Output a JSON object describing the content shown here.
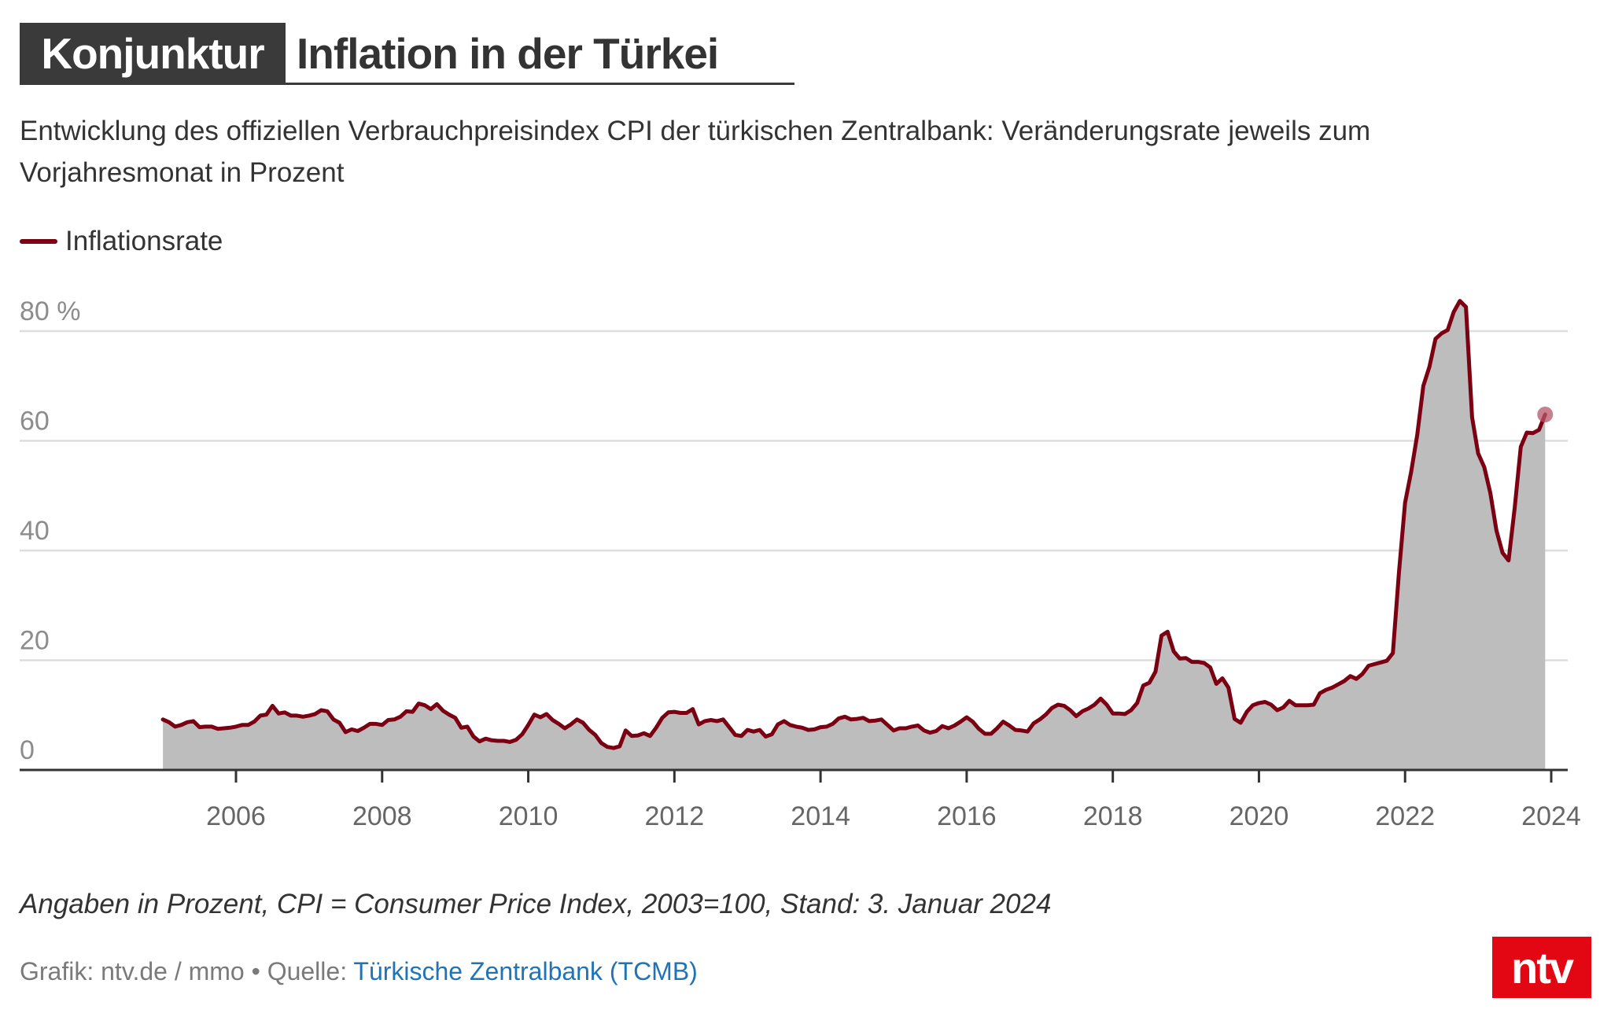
{
  "header": {
    "kicker": "Konjunktur",
    "title": "Inflation in der Türkei",
    "subtitle": "Entwicklung des offiziellen Verbrauchpreisindex CPI der türkischen Zentralbank: Veränderungsrate jeweils zum Vorjahresmonat in Prozent"
  },
  "legend": {
    "items": [
      {
        "label": "Inflationsrate",
        "color": "#7a0012"
      }
    ]
  },
  "footer": {
    "note": "Angaben in Prozent, CPI = Consumer Price Index, 2003=100, Stand: 3. Januar 2024",
    "credit_prefix": "Grafik: ntv.de / mmo • Quelle: ",
    "source_link": "Türkische Zentralbank (TCMB)"
  },
  "logo": {
    "text": "ntv",
    "color": "#e30613"
  },
  "colors": {
    "line": "#7a0012",
    "area": "#bdbdbd",
    "grid": "#dddddd",
    "axis": "#333333"
  },
  "chart_data": {
    "type": "area",
    "title": "Inflation in der Türkei",
    "xlabel": "",
    "ylabel": "%",
    "ylim": [
      0,
      80
    ],
    "xlim": [
      2004.5,
      2024.25
    ],
    "y_ticks": [
      {
        "value": 0,
        "label": "0"
      },
      {
        "value": 20,
        "label": "20"
      },
      {
        "value": 40,
        "label": "40"
      },
      {
        "value": 60,
        "label": "60"
      },
      {
        "value": 80,
        "label": "80 %"
      }
    ],
    "x_ticks": [
      2006,
      2008,
      2010,
      2012,
      2014,
      2016,
      2018,
      2020,
      2022,
      2024
    ],
    "grid": true,
    "legend_position": "top-left",
    "series": [
      {
        "name": "Inflationsrate",
        "start": "2005-01",
        "frequency": "monthly",
        "highlight_last_point": true,
        "values": [
          9.2,
          8.7,
          7.9,
          8.2,
          8.7,
          8.9,
          7.8,
          7.9,
          7.9,
          7.5,
          7.6,
          7.7,
          7.9,
          8.2,
          8.2,
          8.8,
          9.9,
          10.1,
          11.7,
          10.3,
          10.5,
          9.9,
          9.9,
          9.7,
          9.9,
          10.2,
          10.9,
          10.7,
          9.2,
          8.6,
          6.9,
          7.4,
          7.1,
          7.7,
          8.4,
          8.4,
          8.2,
          9.1,
          9.2,
          9.7,
          10.7,
          10.6,
          12.1,
          11.8,
          11.1,
          12.0,
          10.8,
          10.1,
          9.5,
          7.7,
          7.9,
          6.1,
          5.2,
          5.7,
          5.4,
          5.3,
          5.3,
          5.1,
          5.5,
          6.5,
          8.2,
          10.1,
          9.6,
          10.2,
          9.1,
          8.4,
          7.6,
          8.3,
          9.2,
          8.6,
          7.3,
          6.4,
          4.9,
          4.2,
          4.0,
          4.3,
          7.2,
          6.2,
          6.3,
          6.7,
          6.2,
          7.7,
          9.5,
          10.5,
          10.6,
          10.4,
          10.4,
          11.1,
          8.3,
          8.9,
          9.1,
          8.9,
          9.2,
          7.8,
          6.4,
          6.2,
          7.3,
          7.0,
          7.3,
          6.1,
          6.5,
          8.3,
          8.9,
          8.2,
          7.9,
          7.7,
          7.3,
          7.4,
          7.8,
          7.9,
          8.4,
          9.4,
          9.7,
          9.2,
          9.3,
          9.5,
          8.9,
          9.0,
          9.2,
          8.2,
          7.2,
          7.6,
          7.6,
          7.9,
          8.1,
          7.2,
          6.8,
          7.1,
          8.0,
          7.6,
          8.1,
          8.8,
          9.6,
          8.8,
          7.5,
          6.6,
          6.6,
          7.6,
          8.8,
          8.1,
          7.3,
          7.2,
          7.0,
          8.5,
          9.2,
          10.1,
          11.3,
          11.9,
          11.7,
          10.9,
          9.8,
          10.7,
          11.2,
          11.9,
          13.0,
          11.9,
          10.3,
          10.3,
          10.2,
          10.9,
          12.2,
          15.4,
          15.9,
          17.9,
          24.5,
          25.2,
          21.6,
          20.3,
          20.4,
          19.7,
          19.7,
          19.5,
          18.7,
          15.7,
          16.7,
          15.0,
          9.3,
          8.6,
          10.6,
          11.8,
          12.2,
          12.4,
          11.9,
          10.9,
          11.4,
          12.6,
          11.8,
          11.8,
          11.8,
          11.9,
          14.0,
          14.6,
          15.0,
          15.6,
          16.2,
          17.1,
          16.6,
          17.5,
          19.0,
          19.3,
          19.6,
          19.9,
          21.3,
          36.1,
          48.7,
          54.4,
          61.1,
          70.0,
          73.5,
          78.6,
          79.6,
          80.2,
          83.5,
          85.5,
          84.4,
          64.3,
          57.7,
          55.2,
          50.5,
          43.7,
          39.6,
          38.2,
          47.8,
          58.9,
          61.5,
          61.4,
          62.0,
          64.8
        ]
      }
    ]
  }
}
